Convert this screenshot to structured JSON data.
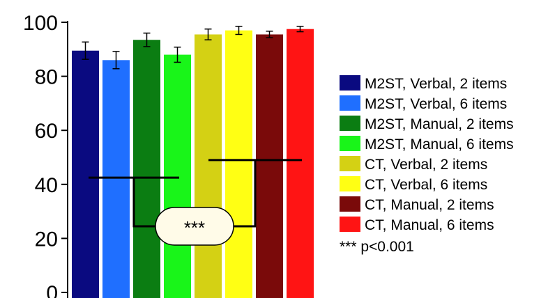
{
  "chart_data": {
    "type": "bar",
    "title": "",
    "xlabel": "",
    "ylabel": "",
    "ylim": [
      0,
      100
    ],
    "yticks": [
      0,
      20,
      40,
      60,
      80,
      100
    ],
    "grid": false,
    "legend_position": "right",
    "series": [
      {
        "name": "M2ST, Verbal, 2 items",
        "value": 89.5,
        "error": 3.2,
        "color": "#0a0a80"
      },
      {
        "name": "M2ST, Verbal, 6 items",
        "value": 86.0,
        "error": 3.2,
        "color": "#1f6fff"
      },
      {
        "name": "M2ST, Manual, 2 items",
        "value": 93.5,
        "error": 2.5,
        "color": "#0b7d12"
      },
      {
        "name": "M2ST, Manual, 6 items",
        "value": 88.0,
        "error": 2.8,
        "color": "#19f519"
      },
      {
        "name": "CT, Verbal, 2 items",
        "value": 95.5,
        "error": 2.0,
        "color": "#d4d114"
      },
      {
        "name": "CT, Verbal, 6 items",
        "value": 97.0,
        "error": 1.5,
        "color": "#ffff14"
      },
      {
        "name": "CT, Manual, 2 items",
        "value": 95.5,
        "error": 1.2,
        "color": "#7a0a0a"
      },
      {
        "name": "CT, Manual, 6 items",
        "value": 97.5,
        "error": 1.0,
        "color": "#ff1414"
      }
    ],
    "annotation": {
      "label": "***",
      "left_bracket_level": 42.5,
      "right_bracket_level": 49,
      "bottom_level": 24.5,
      "left_group": [
        0,
        3
      ],
      "right_group": [
        4,
        7
      ],
      "note": "*** p<0.001"
    }
  }
}
